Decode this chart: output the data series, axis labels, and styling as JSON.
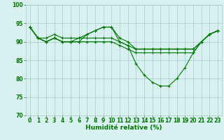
{
  "xlabel": "Humidité relative (%)",
  "xlim": [
    -0.5,
    23.5
  ],
  "ylim": [
    70,
    100
  ],
  "yticks": [
    70,
    75,
    80,
    85,
    90,
    95,
    100
  ],
  "xticks": [
    0,
    1,
    2,
    3,
    4,
    5,
    6,
    7,
    8,
    9,
    10,
    11,
    12,
    13,
    14,
    15,
    16,
    17,
    18,
    19,
    20,
    21,
    22,
    23
  ],
  "background_color": "#d8f0f0",
  "grid_color": "#a0c8c8",
  "line_color": "#007700",
  "series": [
    [
      94,
      91,
      90,
      91,
      90,
      90,
      90,
      92,
      93,
      94,
      94,
      90,
      89,
      84,
      81,
      79,
      78,
      78,
      80,
      83,
      87,
      90,
      92,
      93
    ],
    [
      94,
      91,
      90,
      91,
      90,
      90,
      91,
      92,
      93,
      94,
      94,
      91,
      90,
      88,
      88,
      88,
      88,
      88,
      88,
      88,
      88,
      90,
      92,
      93
    ],
    [
      94,
      91,
      91,
      92,
      91,
      91,
      91,
      91,
      91,
      91,
      91,
      90,
      89,
      88,
      88,
      88,
      88,
      88,
      88,
      88,
      88,
      90,
      92,
      93
    ],
    [
      94,
      91,
      90,
      91,
      90,
      90,
      90,
      90,
      90,
      90,
      90,
      89,
      88,
      87,
      87,
      87,
      87,
      87,
      87,
      87,
      87,
      90,
      92,
      93
    ]
  ],
  "tick_fontsize": 5.5,
  "xlabel_fontsize": 6.5,
  "linewidth": 0.8,
  "marker": "+",
  "markersize": 3.0
}
